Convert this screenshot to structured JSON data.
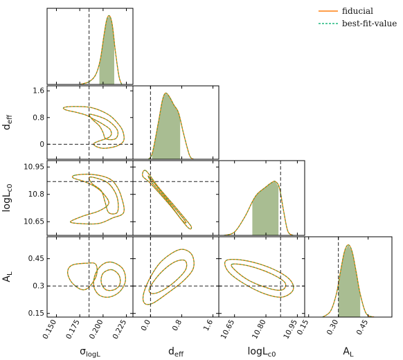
{
  "chart_data": {
    "type": "corner",
    "parameters": [
      {
        "key": "sigma",
        "base": "σ",
        "sub": "logL",
        "range": [
          0.14,
          0.232
        ],
        "ticks": [
          0.15,
          0.175,
          0.2,
          0.225
        ],
        "tick_labels": [
          "0.150",
          "0.175",
          "0.200",
          "0.225"
        ],
        "truth": 0.185,
        "shaded": [
          0.196,
          0.212
        ]
      },
      {
        "key": "deff",
        "base": "d",
        "sub": "eff",
        "range": [
          -0.45,
          1.75
        ],
        "ticks": [
          0.0,
          0.8,
          1.6
        ],
        "tick_labels": [
          "0.0",
          "0.8",
          "1.6"
        ],
        "ticks_y": [
          0,
          0.8,
          1.6
        ],
        "tick_labels_y": [
          "0",
          "0.8",
          "1.6"
        ],
        "truth": 0.0,
        "shaded": [
          0.04,
          0.76
        ]
      },
      {
        "key": "logLc0",
        "base": "logL",
        "sub": "c0",
        "range": [
          10.575,
          10.985
        ],
        "ticks": [
          10.65,
          10.8,
          10.95
        ],
        "tick_labels": [
          "10.65",
          "10.80",
          "10.95"
        ],
        "ticks_y": [
          10.65,
          10.8,
          10.95
        ],
        "tick_labels_y": [
          "10.65",
          "10.8",
          "10.95"
        ],
        "truth": 10.87,
        "shaded": [
          10.735,
          10.86
        ]
      },
      {
        "key": "AL",
        "base": "A",
        "sub": "L",
        "range": [
          0.13,
          0.57
        ],
        "ticks": [
          0.15,
          0.3,
          0.45
        ],
        "tick_labels": [
          "0.15",
          "0.30",
          "0.45"
        ],
        "ticks_y": [
          0.15,
          0.3,
          0.45
        ],
        "tick_labels_y": [
          "0.15",
          "0.3",
          "0.45"
        ],
        "truth": 0.3,
        "shaded": [
          0.3,
          0.41
        ]
      }
    ],
    "series": [
      {
        "name": "fiducial",
        "color": "#ff7f0e",
        "style": "solid"
      },
      {
        "name": "best-fit-value",
        "color": "#1fb97e",
        "style": "dashed"
      }
    ],
    "overlay_color": "#5a9a3a",
    "shade_color": "#a9bd92",
    "truth_line_color": "#222222",
    "marginals": [
      {
        "key": "sigma",
        "x": [
          0.175,
          0.185,
          0.192,
          0.197,
          0.201,
          0.204,
          0.207,
          0.21,
          0.213,
          0.217,
          0.22
        ],
        "y": [
          0.0,
          0.04,
          0.14,
          0.36,
          0.72,
          0.95,
          1.0,
          0.86,
          0.5,
          0.12,
          0.0
        ]
      },
      {
        "key": "deff",
        "x": [
          -0.05,
          0.05,
          0.2,
          0.3,
          0.38,
          0.48,
          0.6,
          0.72,
          0.85,
          1.0,
          1.1
        ],
        "y": [
          0.0,
          0.1,
          0.55,
          0.88,
          1.0,
          0.95,
          0.82,
          0.7,
          0.38,
          0.06,
          0.0
        ]
      },
      {
        "key": "logLc0",
        "x": [
          10.6,
          10.65,
          10.7,
          10.735,
          10.76,
          10.8,
          10.825,
          10.845,
          10.865,
          10.885,
          10.905,
          10.93
        ],
        "y": [
          0.0,
          0.05,
          0.28,
          0.5,
          0.62,
          0.72,
          0.78,
          0.8,
          0.7,
          0.35,
          0.06,
          0.0
        ]
      },
      {
        "key": "AL",
        "x": [
          0.22,
          0.26,
          0.29,
          0.31,
          0.33,
          0.35,
          0.37,
          0.39,
          0.41,
          0.44,
          0.48
        ],
        "y": [
          0.0,
          0.08,
          0.32,
          0.62,
          0.9,
          1.0,
          0.9,
          0.62,
          0.32,
          0.05,
          0.0
        ]
      }
    ],
    "contours": [
      {
        "x": "sigma",
        "y": "deff",
        "levels": [
          [
            [
              0.168,
              1.13
            ],
            [
              0.187,
              1.1
            ],
            [
              0.205,
              0.9
            ],
            [
              0.215,
              0.65
            ],
            [
              0.221,
              0.4
            ],
            [
              0.222,
              0.1
            ],
            [
              0.214,
              -0.06
            ],
            [
              0.199,
              -0.12
            ],
            [
              0.19,
              0.02
            ],
            [
              0.207,
              0.22
            ],
            [
              0.208,
              0.42
            ],
            [
              0.201,
              0.58
            ],
            [
              0.19,
              0.75
            ],
            [
              0.182,
              0.87
            ],
            [
              0.172,
              0.95
            ],
            [
              0.16,
              1.03
            ],
            [
              0.158,
              1.1
            ]
          ],
          [
            [
              0.186,
              0.9
            ],
            [
              0.202,
              0.76
            ],
            [
              0.212,
              0.55
            ],
            [
              0.216,
              0.35
            ],
            [
              0.213,
              0.16
            ],
            [
              0.203,
              0.16
            ],
            [
              0.2,
              0.35
            ],
            [
              0.196,
              0.55
            ],
            [
              0.188,
              0.76
            ]
          ]
        ]
      },
      {
        "x": "sigma",
        "y": "logLc0",
        "levels": [
          [
            [
              0.17,
              10.905
            ],
            [
              0.187,
              10.91
            ],
            [
              0.205,
              10.89
            ],
            [
              0.214,
              10.85
            ],
            [
              0.22,
              10.78
            ],
            [
              0.222,
              10.7
            ],
            [
              0.21,
              10.67
            ],
            [
              0.195,
              10.64
            ],
            [
              0.175,
              10.64
            ],
            [
              0.165,
              10.65
            ],
            [
              0.178,
              10.68
            ],
            [
              0.196,
              10.71
            ],
            [
              0.206,
              10.75
            ],
            [
              0.201,
              10.8
            ],
            [
              0.192,
              10.84
            ],
            [
              0.18,
              10.87
            ],
            [
              0.168,
              10.89
            ]
          ],
          [
            [
              0.186,
              10.895
            ],
            [
              0.203,
              10.87
            ],
            [
              0.212,
              10.82
            ],
            [
              0.216,
              10.76
            ],
            [
              0.215,
              10.7
            ],
            [
              0.206,
              10.7
            ],
            [
              0.202,
              10.76
            ],
            [
              0.198,
              10.82
            ],
            [
              0.188,
              10.86
            ]
          ]
        ]
      },
      {
        "x": "sigma",
        "y": "AL",
        "levels": [
          [
            [
              0.167,
              0.415
            ],
            [
              0.182,
              0.425
            ],
            [
              0.192,
              0.42
            ],
            [
              0.193,
              0.36
            ],
            [
              0.186,
              0.3
            ],
            [
              0.18,
              0.28
            ],
            [
              0.173,
              0.29
            ],
            [
              0.165,
              0.33
            ],
            [
              0.162,
              0.38
            ]
          ],
          [
            [
              0.21,
              0.43
            ],
            [
              0.221,
              0.395
            ],
            [
              0.224,
              0.33
            ],
            [
              0.218,
              0.27
            ],
            [
              0.207,
              0.24
            ],
            [
              0.196,
              0.25
            ],
            [
              0.19,
              0.3
            ],
            [
              0.192,
              0.37
            ],
            [
              0.2,
              0.42
            ]
          ],
          [
            [
              0.209,
              0.39
            ],
            [
              0.217,
              0.36
            ],
            [
              0.218,
              0.31
            ],
            [
              0.212,
              0.28
            ],
            [
              0.203,
              0.28
            ],
            [
              0.198,
              0.32
            ],
            [
              0.2,
              0.37
            ]
          ]
        ]
      },
      {
        "x": "deff",
        "y": "logLc0",
        "levels": [
          [
            [
              -0.12,
              10.93
            ],
            [
              0.2,
              10.84
            ],
            [
              0.6,
              10.74
            ],
            [
              0.95,
              10.65
            ],
            [
              1.05,
              10.62
            ],
            [
              0.95,
              10.62
            ],
            [
              0.5,
              10.74
            ],
            [
              0.0,
              10.86
            ],
            [
              -0.2,
              10.9
            ]
          ],
          [
            [
              -0.05,
              10.9
            ],
            [
              0.25,
              10.82
            ],
            [
              0.6,
              10.73
            ],
            [
              0.9,
              10.65
            ],
            [
              0.8,
              10.66
            ],
            [
              0.45,
              10.76
            ],
            [
              0.05,
              10.86
            ]
          ]
        ]
      },
      {
        "x": "deff",
        "y": "AL",
        "levels": [
          [
            [
              -0.18,
              0.255
            ],
            [
              0.0,
              0.35
            ],
            [
              0.3,
              0.44
            ],
            [
              0.75,
              0.5
            ],
            [
              1.05,
              0.475
            ],
            [
              1.1,
              0.4
            ],
            [
              0.85,
              0.33
            ],
            [
              0.4,
              0.255
            ],
            [
              0.05,
              0.205
            ],
            [
              -0.15,
              0.205
            ]
          ],
          [
            [
              -0.02,
              0.29
            ],
            [
              0.25,
              0.37
            ],
            [
              0.6,
              0.43
            ],
            [
              0.88,
              0.44
            ],
            [
              0.9,
              0.39
            ],
            [
              0.6,
              0.32
            ],
            [
              0.25,
              0.27
            ],
            [
              0.02,
              0.26
            ]
          ]
        ]
      },
      {
        "x": "logLc0",
        "y": "AL",
        "levels": [
          [
            [
              10.61,
              0.44
            ],
            [
              10.7,
              0.44
            ],
            [
              10.82,
              0.4
            ],
            [
              10.91,
              0.34
            ],
            [
              10.93,
              0.28
            ],
            [
              10.88,
              0.24
            ],
            [
              10.8,
              0.255
            ],
            [
              10.7,
              0.31
            ],
            [
              10.62,
              0.38
            ]
          ],
          [
            [
              10.64,
              0.42
            ],
            [
              10.72,
              0.41
            ],
            [
              10.82,
              0.37
            ],
            [
              10.89,
              0.32
            ],
            [
              10.88,
              0.28
            ],
            [
              10.82,
              0.285
            ],
            [
              10.72,
              0.33
            ],
            [
              10.65,
              0.39
            ]
          ]
        ]
      }
    ]
  }
}
